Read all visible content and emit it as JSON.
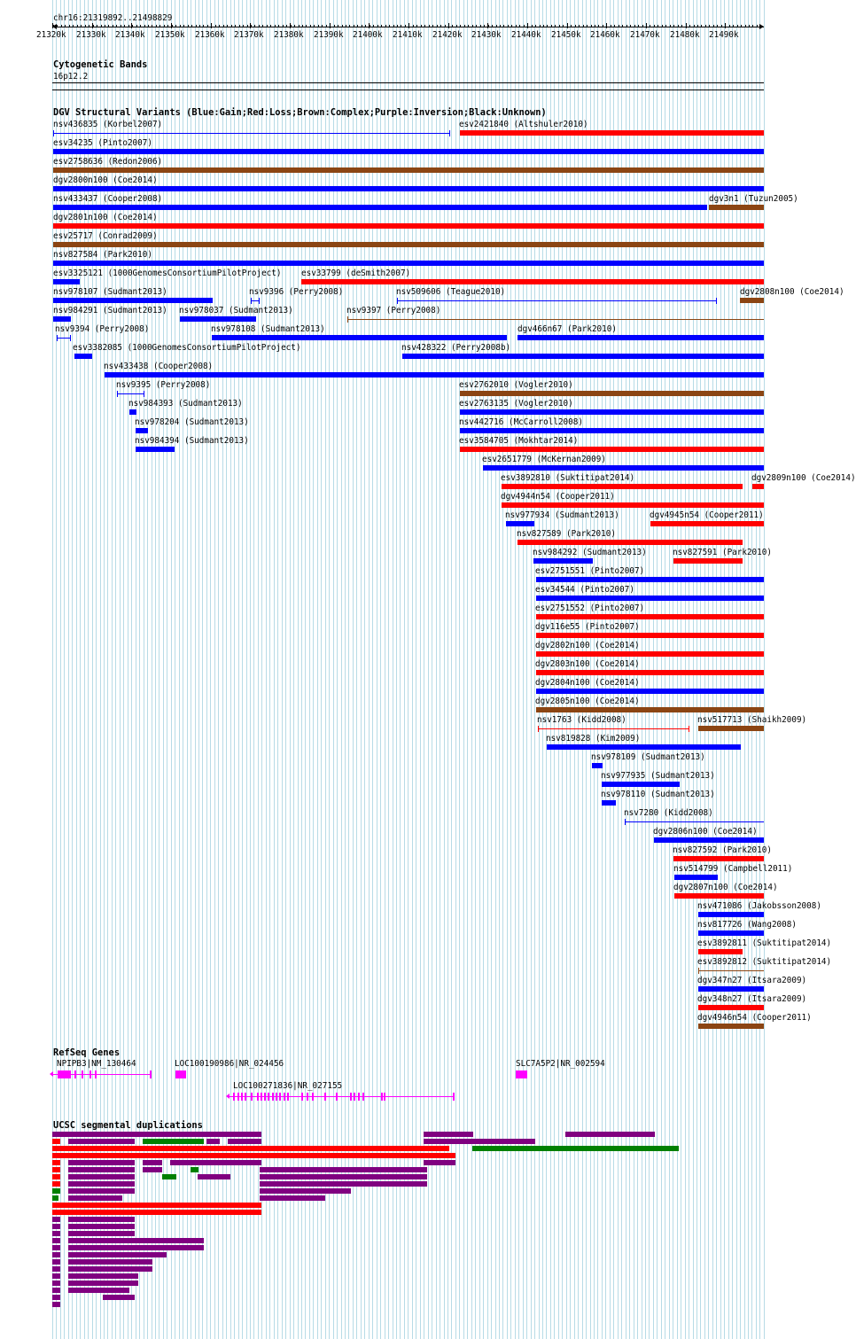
{
  "ruler": {
    "position": "chr16:21319892..21498829",
    "ticks": [
      "21320k",
      "21330k",
      "21340k",
      "21350k",
      "21360k",
      "21370k",
      "21380k",
      "21390k",
      "21400k",
      "21410k",
      "21420k",
      "21430k",
      "21440k",
      "21450k",
      "21460k",
      "21470k",
      "21480k",
      "21490k"
    ]
  },
  "colors": {
    "gain": "#0000ff",
    "loss": "#ff0000",
    "complex": "#8b4513",
    "gene": "#ff00ff",
    "segdup_red": "#ff0000",
    "segdup_purple": "#800080",
    "segdup_green": "#008000",
    "grid": "#b7dbe6"
  },
  "cytobands": {
    "title": "Cytogenetic Bands",
    "band": "16p12.2"
  },
  "dgv": {
    "title": "DGV Structural Variants (Blue:Gain;Red:Loss;Brown:Complex;Purple:Inversion;Black:Unknown)",
    "variants": [
      {
        "label": "nsv436835 (Korbel2007)",
        "kind": "gain",
        "style": "thin"
      },
      {
        "label": "esv2421840 (Altshuler2010)",
        "kind": "loss"
      },
      {
        "label": "esv34235 (Pinto2007)",
        "kind": "gain"
      },
      {
        "label": "esv2758636 (Redon2006)",
        "kind": "complex"
      },
      {
        "label": "dgv2800n100 (Coe2014)",
        "kind": "gain"
      },
      {
        "label": "nsv433437 (Cooper2008)",
        "kind": "gain"
      },
      {
        "label": "dgv3n1 (Tuzun2005)",
        "kind": "complex"
      },
      {
        "label": "dgv2801n100 (Coe2014)",
        "kind": "loss"
      },
      {
        "label": "esv25717 (Conrad2009)",
        "kind": "complex"
      },
      {
        "label": "nsv827584 (Park2010)",
        "kind": "gain"
      },
      {
        "label": "esv3325121 (1000GenomesConsortiumPilotProject)",
        "kind": "gain"
      },
      {
        "label": "esv33799 (deSmith2007)",
        "kind": "loss"
      },
      {
        "label": "nsv978107 (Sudmant2013)",
        "kind": "gain"
      },
      {
        "label": "nsv9396 (Perry2008)",
        "kind": "gain",
        "style": "thin"
      },
      {
        "label": "nsv509606 (Teague2010)",
        "kind": "gain",
        "style": "thin"
      },
      {
        "label": "dgv2808n100 (Coe2014)",
        "kind": "complex"
      },
      {
        "label": "nsv984291 (Sudmant2013)",
        "kind": "gain"
      },
      {
        "label": "nsv978037 (Sudmant2013)",
        "kind": "gain"
      },
      {
        "label": "nsv9397 (Perry2008)",
        "kind": "complex",
        "style": "thin"
      },
      {
        "label": "nsv9394 (Perry2008)",
        "kind": "gain",
        "style": "thin"
      },
      {
        "label": "nsv978108 (Sudmant2013)",
        "kind": "gain"
      },
      {
        "label": "dgv466n67 (Park2010)",
        "kind": "gain"
      },
      {
        "label": "esv3382085 (1000GenomesConsortiumPilotProject)",
        "kind": "gain"
      },
      {
        "label": "nsv428322 (Perry2008b)",
        "kind": "gain"
      },
      {
        "label": "nsv433438 (Cooper2008)",
        "kind": "gain"
      },
      {
        "label": "nsv9395 (Perry2008)",
        "kind": "gain",
        "style": "thin"
      },
      {
        "label": "esv2762010 (Vogler2010)",
        "kind": "complex"
      },
      {
        "label": "nsv984393 (Sudmant2013)",
        "kind": "gain"
      },
      {
        "label": "esv2763135 (Vogler2010)",
        "kind": "gain"
      },
      {
        "label": "nsv978204 (Sudmant2013)",
        "kind": "gain"
      },
      {
        "label": "nsv442716 (McCarroll2008)",
        "kind": "gain"
      },
      {
        "label": "nsv984394 (Sudmant2013)",
        "kind": "gain"
      },
      {
        "label": "esv3584705 (Mokhtar2014)",
        "kind": "loss"
      },
      {
        "label": "esv2651779 (McKernan2009)",
        "kind": "gain"
      },
      {
        "label": "esv3892810 (Suktitipat2014)",
        "kind": "loss"
      },
      {
        "label": "dgv2809n100 (Coe2014)",
        "kind": "loss"
      },
      {
        "label": "dgv4944n54 (Cooper2011)",
        "kind": "loss"
      },
      {
        "label": "nsv977934 (Sudmant2013)",
        "kind": "gain"
      },
      {
        "label": "dgv4945n54 (Cooper2011)",
        "kind": "loss"
      },
      {
        "label": "nsv827589 (Park2010)",
        "kind": "loss"
      },
      {
        "label": "nsv984292 (Sudmant2013)",
        "kind": "gain"
      },
      {
        "label": "nsv827591 (Park2010)",
        "kind": "loss"
      },
      {
        "label": "esv2751551 (Pinto2007)",
        "kind": "gain"
      },
      {
        "label": "esv34544 (Pinto2007)",
        "kind": "gain"
      },
      {
        "label": "esv2751552 (Pinto2007)",
        "kind": "loss"
      },
      {
        "label": "dgv116e55 (Pinto2007)",
        "kind": "loss"
      },
      {
        "label": "dgv2802n100 (Coe2014)",
        "kind": "loss"
      },
      {
        "label": "dgv2803n100 (Coe2014)",
        "kind": "loss"
      },
      {
        "label": "dgv2804n100 (Coe2014)",
        "kind": "gain"
      },
      {
        "label": "dgv2805n100 (Coe2014)",
        "kind": "complex"
      },
      {
        "label": "nsv1763 (Kidd2008)",
        "kind": "loss",
        "style": "thin"
      },
      {
        "label": "nsv517713 (Shaikh2009)",
        "kind": "complex"
      },
      {
        "label": "nsv819828 (Kim2009)",
        "kind": "gain"
      },
      {
        "label": "nsv978109 (Sudmant2013)",
        "kind": "gain"
      },
      {
        "label": "nsv977935 (Sudmant2013)",
        "kind": "gain"
      },
      {
        "label": "nsv978110 (Sudmant2013)",
        "kind": "gain"
      },
      {
        "label": "nsv7280 (Kidd2008)",
        "kind": "gain",
        "style": "thin"
      },
      {
        "label": "dgv2806n100 (Coe2014)",
        "kind": "gain"
      },
      {
        "label": "nsv827592 (Park2010)",
        "kind": "loss"
      },
      {
        "label": "nsv514799 (Campbell2011)",
        "kind": "gain"
      },
      {
        "label": "dgv2807n100 (Coe2014)",
        "kind": "loss"
      },
      {
        "label": "nsv471086 (Jakobsson2008)",
        "kind": "gain"
      },
      {
        "label": "nsv817726 (Wang2008)",
        "kind": "gain"
      },
      {
        "label": "esv3892811 (Suktitipat2014)",
        "kind": "loss"
      },
      {
        "label": "esv3892812 (Suktitipat2014)",
        "kind": "complex",
        "style": "thin"
      },
      {
        "label": "dgv347n27 (Itsara2009)",
        "kind": "gain"
      },
      {
        "label": "dgv348n27 (Itsara2009)",
        "kind": "loss"
      },
      {
        "label": "dgv4946n54 (Cooper2011)",
        "kind": "complex"
      }
    ]
  },
  "refseq": {
    "title": "RefSeq Genes",
    "genes": [
      {
        "label": "NPIPB3|NM_130464"
      },
      {
        "label": "LOC100190986|NR_024456"
      },
      {
        "label": "SLC7A5P2|NR_002594"
      },
      {
        "label": "LOC100271836|NR_027155"
      }
    ]
  },
  "segdups": {
    "title": "UCSC segmental duplications"
  }
}
